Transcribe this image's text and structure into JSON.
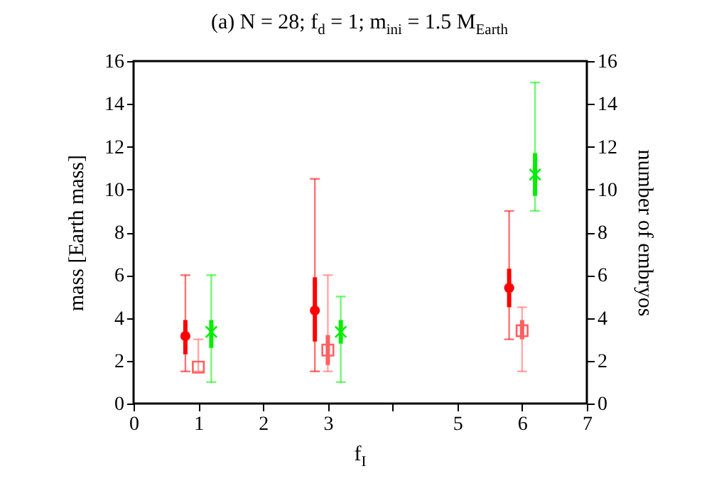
{
  "chart_data": {
    "type": "scatter",
    "title": "(a) N = 28; f$_{d}$ = 1; m$_{ini}$ = 1.5 M$_{Earth}$",
    "xlabel": "f$_{I}$",
    "ylabel": "mass [Earth mass]",
    "y2label": "number of embryos",
    "xlim": [
      0,
      7
    ],
    "xticks": [
      0,
      1,
      2,
      3,
      {
        "value": 4,
        "label": null
      },
      5,
      6,
      7
    ],
    "ylim": [
      0,
      16
    ],
    "yticks": [
      0,
      2,
      4,
      6,
      8,
      10,
      12,
      14,
      16
    ],
    "y2lim": [
      0,
      16
    ],
    "y2ticks": [
      0,
      2,
      4,
      6,
      8,
      10,
      12,
      14,
      16
    ],
    "grid": false,
    "series": [
      {
        "color": "#ff0000",
        "marker": "circle",
        "x": [
          0.8,
          2.8,
          5.8
        ],
        "values": [
          3.15,
          4.35,
          5.4
        ],
        "errors": [
          [
            1.5,
            6
          ],
          [
            1.5,
            10.5
          ],
          [
            3,
            9
          ]
        ],
        "lower": [
          2.3,
          2.9,
          4.5
        ],
        "upper": [
          3.9,
          5.9,
          6.3
        ]
      },
      {
        "color": "#ff6060",
        "marker": "square",
        "x": [
          1.0,
          3.0,
          6.0
        ],
        "values": [
          1.7,
          2.5,
          3.4
        ],
        "errors": [
          [
            1.5,
            3
          ],
          [
            1.5,
            6
          ],
          [
            1.5,
            4.5
          ]
        ],
        "lower": [
          null,
          1.8,
          3
        ],
        "upper": [
          null,
          3.2,
          3.9
        ]
      },
      {
        "color": "#00ee00",
        "marker": "cross",
        "axis": "y2",
        "x": [
          1.2,
          3.2,
          6.2
        ],
        "values": [
          3.35,
          3.35,
          10.7
        ],
        "errors": [
          [
            1,
            6
          ],
          [
            1,
            5
          ],
          [
            9,
            15
          ]
        ],
        "lower": [
          2.6,
          2.8,
          9.7
        ],
        "upper": [
          3.9,
          3.9,
          11.7
        ]
      }
    ]
  }
}
